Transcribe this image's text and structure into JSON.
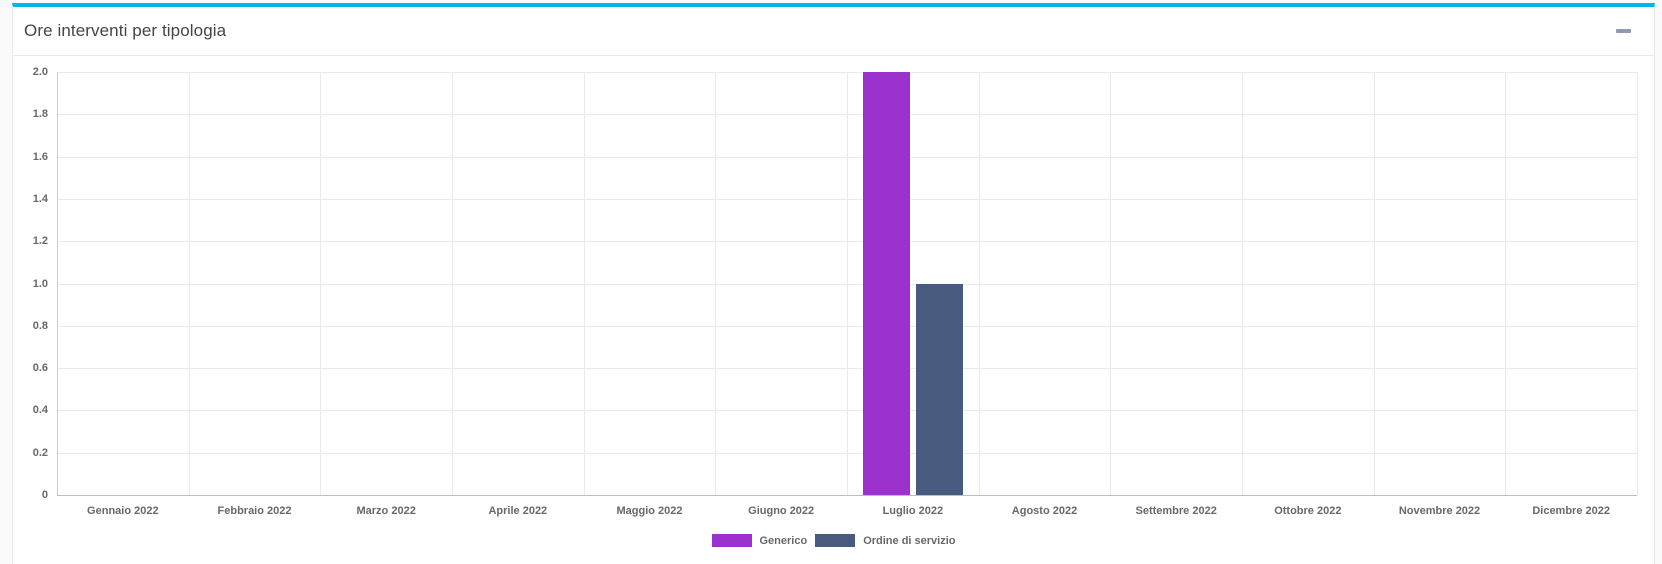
{
  "panel": {
    "title": "Ore interventi per tipologia",
    "accent_color": "#00b8e0",
    "collapse_icon": "minus-icon"
  },
  "chart_data": {
    "type": "bar",
    "title": "Ore interventi per tipologia",
    "categories": [
      "Gennaio 2022",
      "Febbraio 2022",
      "Marzo 2022",
      "Aprile 2022",
      "Maggio 2022",
      "Giugno 2022",
      "Luglio 2022",
      "Agosto 2022",
      "Settembre 2022",
      "Ottobre 2022",
      "Novembre 2022",
      "Dicembre 2022"
    ],
    "series": [
      {
        "name": "Generico",
        "color": "#9c32cd",
        "values": [
          0,
          0,
          0,
          0,
          0,
          0,
          2,
          0,
          0,
          0,
          0,
          0
        ]
      },
      {
        "name": "Ordine di servizio",
        "color": "#485a7e",
        "values": [
          0,
          0,
          0,
          0,
          0,
          0,
          1,
          0,
          0,
          0,
          0,
          0
        ]
      }
    ],
    "ylim": [
      0,
      2
    ],
    "ytick_step": 0.2,
    "ytick_labels": [
      "0",
      "0.2",
      "0.4",
      "0.6",
      "0.8",
      "1.0",
      "1.2",
      "1.4",
      "1.6",
      "1.8",
      "2.0"
    ],
    "grid": true,
    "legend_position": "bottom"
  }
}
